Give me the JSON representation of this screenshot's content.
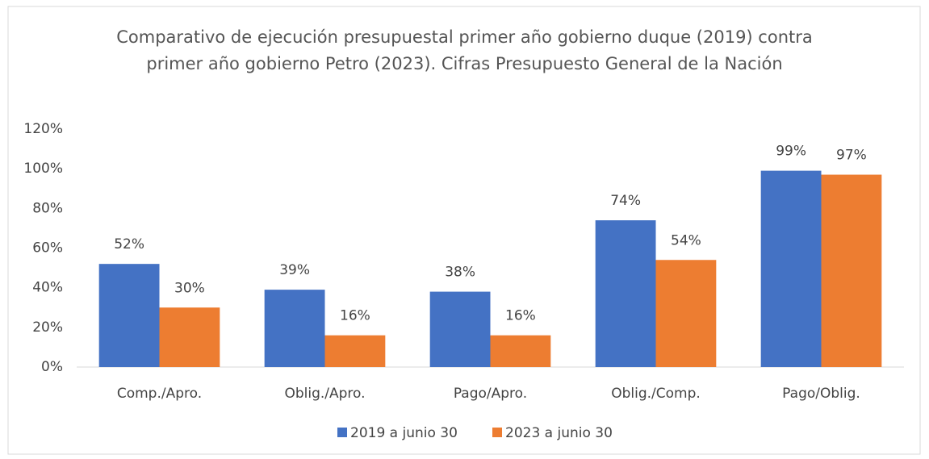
{
  "chart_data": {
    "type": "bar",
    "title": "Comparativo de ejecución presupuestal primer año gobierno duque (2019) contra primer año gobierno Petro (2023). Cifras Presupuesto General de la Nación",
    "categories": [
      "Comp./Apro.",
      "Oblig./Apro.",
      "Pago/Apro.",
      "Oblig./Comp.",
      "Pago/Oblig."
    ],
    "series": [
      {
        "name": "2019 a junio 30",
        "color": "#4472c4",
        "values": [
          52,
          39,
          38,
          74,
          99
        ],
        "value_labels": [
          "52%",
          "39%",
          "38%",
          "74%",
          "99%"
        ]
      },
      {
        "name": "2023 a junio 30",
        "color": "#ed7d31",
        "values": [
          30,
          16,
          16,
          54,
          97
        ],
        "value_labels": [
          "30%",
          "16%",
          "16%",
          "54%",
          "97%"
        ]
      }
    ],
    "ylim": [
      0,
      120
    ],
    "yticks": [
      {
        "value": 0,
        "label": "0%"
      },
      {
        "value": 20,
        "label": "20%"
      },
      {
        "value": 40,
        "label": "40%"
      },
      {
        "value": 60,
        "label": "60%"
      },
      {
        "value": 80,
        "label": "80%"
      },
      {
        "value": 100,
        "label": "100%"
      },
      {
        "value": 120,
        "label": "120%"
      }
    ],
    "grid": false,
    "legend": "bottom"
  }
}
